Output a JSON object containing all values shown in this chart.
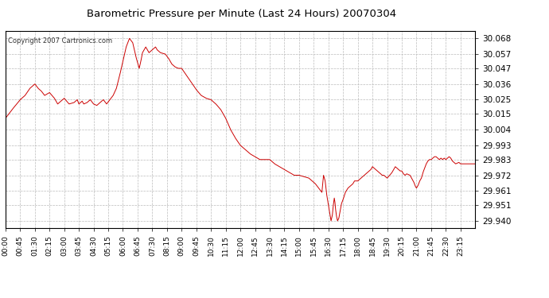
{
  "title": "Barometric Pressure per Minute (Last 24 Hours) 20070304",
  "copyright": "Copyright 2007 Cartronics.com",
  "line_color": "#cc0000",
  "bg_color": "#ffffff",
  "plot_bg_color": "#ffffff",
  "grid_color": "#bbbbbb",
  "yticks": [
    29.94,
    29.951,
    29.961,
    29.972,
    29.983,
    29.993,
    30.004,
    30.015,
    30.025,
    30.036,
    30.047,
    30.057,
    30.068
  ],
  "ylim": [
    29.935,
    30.073
  ],
  "xtick_labels": [
    "00:00",
    "00:45",
    "01:30",
    "02:15",
    "03:00",
    "03:45",
    "04:30",
    "05:15",
    "06:00",
    "06:45",
    "07:30",
    "08:15",
    "09:00",
    "09:45",
    "10:30",
    "11:15",
    "12:00",
    "12:45",
    "13:30",
    "14:15",
    "15:00",
    "15:45",
    "16:30",
    "17:15",
    "18:00",
    "18:45",
    "19:30",
    "20:15",
    "21:00",
    "21:45",
    "22:30",
    "23:15"
  ],
  "keypoints": [
    [
      0,
      30.012
    ],
    [
      20,
      30.018
    ],
    [
      45,
      30.025
    ],
    [
      60,
      30.028
    ],
    [
      75,
      30.033
    ],
    [
      90,
      30.036
    ],
    [
      100,
      30.033
    ],
    [
      110,
      30.031
    ],
    [
      120,
      30.028
    ],
    [
      135,
      30.03
    ],
    [
      150,
      30.026
    ],
    [
      160,
      30.022
    ],
    [
      170,
      30.024
    ],
    [
      180,
      30.026
    ],
    [
      195,
      30.022
    ],
    [
      210,
      30.023
    ],
    [
      220,
      30.025
    ],
    [
      225,
      30.022
    ],
    [
      235,
      30.024
    ],
    [
      240,
      30.022
    ],
    [
      250,
      30.023
    ],
    [
      260,
      30.025
    ],
    [
      270,
      30.022
    ],
    [
      280,
      30.021
    ],
    [
      290,
      30.023
    ],
    [
      300,
      30.025
    ],
    [
      310,
      30.022
    ],
    [
      320,
      30.025
    ],
    [
      330,
      30.028
    ],
    [
      340,
      30.033
    ],
    [
      350,
      30.042
    ],
    [
      360,
      30.052
    ],
    [
      370,
      30.062
    ],
    [
      380,
      30.068
    ],
    [
      390,
      30.065
    ],
    [
      400,
      30.055
    ],
    [
      410,
      30.047
    ],
    [
      415,
      30.052
    ],
    [
      420,
      30.058
    ],
    [
      430,
      30.062
    ],
    [
      435,
      30.06
    ],
    [
      440,
      30.058
    ],
    [
      450,
      30.06
    ],
    [
      460,
      30.062
    ],
    [
      465,
      30.06
    ],
    [
      475,
      30.058
    ],
    [
      490,
      30.057
    ],
    [
      500,
      30.054
    ],
    [
      510,
      30.05
    ],
    [
      520,
      30.048
    ],
    [
      530,
      30.047
    ],
    [
      540,
      30.047
    ],
    [
      555,
      30.042
    ],
    [
      570,
      30.037
    ],
    [
      585,
      30.032
    ],
    [
      600,
      30.028
    ],
    [
      615,
      30.026
    ],
    [
      630,
      30.025
    ],
    [
      645,
      30.022
    ],
    [
      660,
      30.018
    ],
    [
      675,
      30.012
    ],
    [
      690,
      30.004
    ],
    [
      705,
      29.998
    ],
    [
      720,
      29.993
    ],
    [
      735,
      29.99
    ],
    [
      750,
      29.987
    ],
    [
      765,
      29.985
    ],
    [
      780,
      29.983
    ],
    [
      795,
      29.983
    ],
    [
      810,
      29.983
    ],
    [
      825,
      29.98
    ],
    [
      840,
      29.978
    ],
    [
      855,
      29.976
    ],
    [
      870,
      29.974
    ],
    [
      885,
      29.972
    ],
    [
      900,
      29.972
    ],
    [
      915,
      29.971
    ],
    [
      930,
      29.97
    ],
    [
      940,
      29.968
    ],
    [
      950,
      29.966
    ],
    [
      960,
      29.963
    ],
    [
      970,
      29.96
    ],
    [
      975,
      29.972
    ],
    [
      980,
      29.968
    ],
    [
      985,
      29.958
    ],
    [
      990,
      29.951
    ],
    [
      995,
      29.944
    ],
    [
      998,
      29.94
    ],
    [
      1002,
      29.944
    ],
    [
      1005,
      29.951
    ],
    [
      1008,
      29.956
    ],
    [
      1010,
      29.953
    ],
    [
      1012,
      29.948
    ],
    [
      1015,
      29.943
    ],
    [
      1018,
      29.94
    ],
    [
      1022,
      29.942
    ],
    [
      1026,
      29.947
    ],
    [
      1030,
      29.952
    ],
    [
      1035,
      29.955
    ],
    [
      1042,
      29.96
    ],
    [
      1050,
      29.963
    ],
    [
      1060,
      29.965
    ],
    [
      1065,
      29.966
    ],
    [
      1070,
      29.968
    ],
    [
      1080,
      29.968
    ],
    [
      1090,
      29.97
    ],
    [
      1100,
      29.972
    ],
    [
      1110,
      29.974
    ],
    [
      1120,
      29.976
    ],
    [
      1125,
      29.978
    ],
    [
      1130,
      29.977
    ],
    [
      1140,
      29.975
    ],
    [
      1150,
      29.973
    ],
    [
      1155,
      29.972
    ],
    [
      1160,
      29.972
    ],
    [
      1170,
      29.97
    ],
    [
      1178,
      29.972
    ],
    [
      1185,
      29.974
    ],
    [
      1190,
      29.976
    ],
    [
      1195,
      29.978
    ],
    [
      1200,
      29.977
    ],
    [
      1210,
      29.975
    ],
    [
      1215,
      29.975
    ],
    [
      1220,
      29.973
    ],
    [
      1225,
      29.972
    ],
    [
      1230,
      29.973
    ],
    [
      1240,
      29.972
    ],
    [
      1245,
      29.97
    ],
    [
      1252,
      29.967
    ],
    [
      1257,
      29.964
    ],
    [
      1260,
      29.963
    ],
    [
      1265,
      29.965
    ],
    [
      1270,
      29.968
    ],
    [
      1275,
      29.97
    ],
    [
      1280,
      29.974
    ],
    [
      1285,
      29.977
    ],
    [
      1290,
      29.98
    ],
    [
      1295,
      29.982
    ],
    [
      1300,
      29.983
    ],
    [
      1305,
      29.983
    ],
    [
      1310,
      29.984
    ],
    [
      1315,
      29.985
    ],
    [
      1320,
      29.985
    ],
    [
      1325,
      29.984
    ],
    [
      1330,
      29.983
    ],
    [
      1335,
      29.984
    ],
    [
      1340,
      29.983
    ],
    [
      1345,
      29.984
    ],
    [
      1350,
      29.983
    ],
    [
      1355,
      29.984
    ],
    [
      1360,
      29.985
    ],
    [
      1365,
      29.984
    ],
    [
      1370,
      29.982
    ],
    [
      1375,
      29.981
    ],
    [
      1380,
      29.98
    ],
    [
      1390,
      29.981
    ],
    [
      1395,
      29.98
    ],
    [
      1410,
      29.98
    ],
    [
      1425,
      29.98
    ],
    [
      1439,
      29.98
    ]
  ]
}
